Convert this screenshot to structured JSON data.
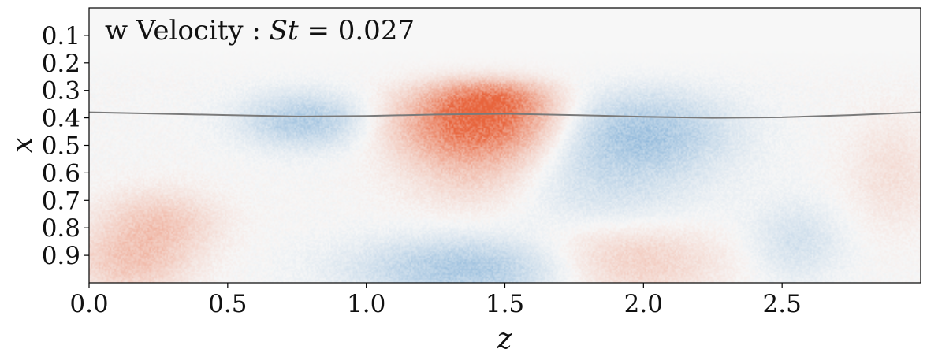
{
  "chart_data": {
    "type": "heatmap",
    "title": "w Velocity : St = 0.027",
    "title_parts": {
      "prefix": "w Velocity : ",
      "var": "St",
      "suffix": " = 0.027"
    },
    "xlabel": "z",
    "ylabel": "x",
    "xlim": [
      0.0,
      3.0
    ],
    "ylim": [
      1.0,
      0.0
    ],
    "x_ticks": [
      0.0,
      0.5,
      1.0,
      1.5,
      2.0,
      2.5
    ],
    "x_tick_labels": [
      "0.0",
      "0.5",
      "1.0",
      "1.5",
      "2.0",
      "2.5"
    ],
    "y_ticks": [
      0.1,
      0.2,
      0.3,
      0.4,
      0.5,
      0.6,
      0.7,
      0.8,
      0.9
    ],
    "y_tick_labels": [
      "0.1",
      "0.2",
      "0.3",
      "0.4",
      "0.5",
      "0.6",
      "0.7",
      "0.8",
      "0.9"
    ],
    "colormap": {
      "positive": "#e8643c",
      "negative": "#4a8ec8",
      "neutral": "#f7f7f7"
    },
    "field_blobs": [
      {
        "z": 1.4,
        "x": 0.42,
        "sz": 0.2,
        "sx": 0.09,
        "amp": 0.85
      },
      {
        "z": 1.45,
        "x": 0.33,
        "sz": 0.14,
        "sx": 0.05,
        "amp": 0.45
      },
      {
        "z": 1.4,
        "x": 0.6,
        "sz": 0.18,
        "sx": 0.1,
        "amp": 0.25
      },
      {
        "z": 0.78,
        "x": 0.41,
        "sz": 0.16,
        "sx": 0.07,
        "amp": -0.4
      },
      {
        "z": 2.0,
        "x": 0.45,
        "sz": 0.22,
        "sx": 0.1,
        "amp": -0.4
      },
      {
        "z": 1.85,
        "x": 0.65,
        "sz": 0.25,
        "sx": 0.15,
        "amp": -0.2
      },
      {
        "z": 1.4,
        "x": 0.95,
        "sz": 0.3,
        "sx": 0.08,
        "amp": -0.45
      },
      {
        "z": 0.25,
        "x": 0.78,
        "sz": 0.15,
        "sx": 0.08,
        "amp": 0.3
      },
      {
        "z": 0.15,
        "x": 0.93,
        "sz": 0.15,
        "sx": 0.08,
        "amp": 0.3
      },
      {
        "z": 1.9,
        "x": 0.92,
        "sz": 0.25,
        "sx": 0.1,
        "amp": 0.35
      },
      {
        "z": 2.55,
        "x": 0.85,
        "sz": 0.12,
        "sx": 0.1,
        "amp": -0.2
      },
      {
        "z": 2.9,
        "x": 0.6,
        "sz": 0.12,
        "sx": 0.15,
        "amp": 0.15
      }
    ],
    "interface_line": {
      "color": "#7a7a7a",
      "z": [
        0.0,
        0.25,
        0.5,
        0.75,
        1.0,
        1.25,
        1.5,
        1.75,
        2.0,
        2.25,
        2.5,
        2.75,
        3.0
      ],
      "x": [
        0.38,
        0.385,
        0.39,
        0.395,
        0.393,
        0.388,
        0.385,
        0.39,
        0.396,
        0.4,
        0.398,
        0.39,
        0.38
      ]
    }
  }
}
